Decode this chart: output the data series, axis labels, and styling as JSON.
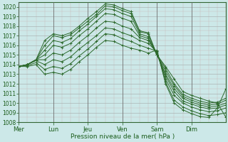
{
  "background_color": "#cce8e8",
  "line_color": "#2d6a2d",
  "xlabel": "Pression niveau de la mer( hPa )",
  "ylim": [
    1008,
    1020.5
  ],
  "yticks": [
    1008,
    1009,
    1010,
    1011,
    1012,
    1013,
    1014,
    1015,
    1016,
    1017,
    1018,
    1019,
    1020
  ],
  "day_labels": [
    "Mer",
    "Lun",
    "Jeu",
    "Ven",
    "Sam",
    "Dim"
  ],
  "day_positions": [
    0,
    24,
    48,
    72,
    96,
    120
  ],
  "total_hours": 144,
  "series": [
    {
      "points": [
        [
          0,
          1013.8
        ],
        [
          6,
          1014.0
        ],
        [
          12,
          1014.5
        ],
        [
          18,
          1016.5
        ],
        [
          24,
          1017.2
        ],
        [
          30,
          1017.0
        ],
        [
          36,
          1017.3
        ],
        [
          42,
          1018.0
        ],
        [
          48,
          1018.8
        ],
        [
          54,
          1019.5
        ],
        [
          60,
          1020.3
        ],
        [
          66,
          1020.2
        ],
        [
          72,
          1019.8
        ],
        [
          78,
          1019.5
        ],
        [
          84,
          1017.5
        ],
        [
          90,
          1017.3
        ],
        [
          96,
          1015.0
        ],
        [
          102,
          1013.8
        ],
        [
          108,
          1012.5
        ],
        [
          114,
          1011.2
        ],
        [
          120,
          1010.8
        ],
        [
          126,
          1010.5
        ],
        [
          132,
          1010.2
        ],
        [
          138,
          1010.0
        ],
        [
          144,
          1008.5
        ]
      ]
    },
    {
      "points": [
        [
          0,
          1013.8
        ],
        [
          6,
          1014.0
        ],
        [
          12,
          1014.5
        ],
        [
          18,
          1016.0
        ],
        [
          24,
          1017.0
        ],
        [
          30,
          1016.8
        ],
        [
          36,
          1017.1
        ],
        [
          42,
          1017.8
        ],
        [
          48,
          1018.5
        ],
        [
          54,
          1019.2
        ],
        [
          60,
          1020.1
        ],
        [
          66,
          1020.0
        ],
        [
          72,
          1019.6
        ],
        [
          78,
          1019.3
        ],
        [
          84,
          1017.4
        ],
        [
          90,
          1017.2
        ],
        [
          96,
          1015.0
        ],
        [
          102,
          1013.6
        ],
        [
          108,
          1012.0
        ],
        [
          114,
          1010.9
        ],
        [
          120,
          1010.5
        ],
        [
          126,
          1010.2
        ],
        [
          132,
          1010.0
        ],
        [
          138,
          1010.1
        ],
        [
          144,
          1010.5
        ]
      ]
    },
    {
      "points": [
        [
          0,
          1013.8
        ],
        [
          6,
          1014.0
        ],
        [
          12,
          1014.5
        ],
        [
          18,
          1015.5
        ],
        [
          24,
          1016.5
        ],
        [
          30,
          1016.3
        ],
        [
          36,
          1016.7
        ],
        [
          42,
          1017.5
        ],
        [
          48,
          1018.2
        ],
        [
          54,
          1019.0
        ],
        [
          60,
          1019.8
        ],
        [
          66,
          1019.7
        ],
        [
          72,
          1019.3
        ],
        [
          78,
          1019.0
        ],
        [
          84,
          1017.2
        ],
        [
          90,
          1016.9
        ],
        [
          96,
          1015.0
        ],
        [
          102,
          1013.3
        ],
        [
          108,
          1011.8
        ],
        [
          114,
          1010.7
        ],
        [
          120,
          1010.3
        ],
        [
          126,
          1010.0
        ],
        [
          132,
          1009.8
        ],
        [
          138,
          1009.9
        ],
        [
          144,
          1010.3
        ]
      ]
    },
    {
      "points": [
        [
          0,
          1013.8
        ],
        [
          6,
          1014.0
        ],
        [
          12,
          1014.5
        ],
        [
          18,
          1015.0
        ],
        [
          24,
          1016.0
        ],
        [
          30,
          1015.8
        ],
        [
          36,
          1016.2
        ],
        [
          42,
          1017.0
        ],
        [
          48,
          1017.7
        ],
        [
          54,
          1018.5
        ],
        [
          60,
          1019.3
        ],
        [
          66,
          1019.2
        ],
        [
          72,
          1018.8
        ],
        [
          78,
          1018.5
        ],
        [
          84,
          1017.0
        ],
        [
          90,
          1016.7
        ],
        [
          96,
          1015.0
        ],
        [
          102,
          1013.0
        ],
        [
          108,
          1011.5
        ],
        [
          114,
          1010.5
        ],
        [
          120,
          1010.1
        ],
        [
          126,
          1009.8
        ],
        [
          132,
          1009.6
        ],
        [
          138,
          1009.7
        ],
        [
          144,
          1010.0
        ]
      ]
    },
    {
      "points": [
        [
          0,
          1013.8
        ],
        [
          6,
          1014.0
        ],
        [
          12,
          1014.5
        ],
        [
          18,
          1014.5
        ],
        [
          24,
          1015.2
        ],
        [
          30,
          1015.0
        ],
        [
          36,
          1015.5
        ],
        [
          42,
          1016.3
        ],
        [
          48,
          1017.0
        ],
        [
          54,
          1017.8
        ],
        [
          60,
          1018.5
        ],
        [
          66,
          1018.4
        ],
        [
          72,
          1018.0
        ],
        [
          78,
          1017.7
        ],
        [
          84,
          1016.8
        ],
        [
          90,
          1016.5
        ],
        [
          96,
          1015.2
        ],
        [
          102,
          1012.8
        ],
        [
          108,
          1011.2
        ],
        [
          114,
          1010.2
        ],
        [
          120,
          1009.9
        ],
        [
          126,
          1009.6
        ],
        [
          132,
          1009.4
        ],
        [
          138,
          1009.5
        ],
        [
          144,
          1009.8
        ]
      ]
    },
    {
      "points": [
        [
          0,
          1013.8
        ],
        [
          6,
          1014.0
        ],
        [
          12,
          1014.4
        ],
        [
          18,
          1014.0
        ],
        [
          24,
          1014.5
        ],
        [
          30,
          1014.3
        ],
        [
          36,
          1014.8
        ],
        [
          42,
          1015.6
        ],
        [
          48,
          1016.3
        ],
        [
          54,
          1017.0
        ],
        [
          60,
          1017.8
        ],
        [
          66,
          1017.7
        ],
        [
          72,
          1017.3
        ],
        [
          78,
          1017.0
        ],
        [
          84,
          1016.5
        ],
        [
          90,
          1016.2
        ],
        [
          96,
          1015.3
        ],
        [
          102,
          1012.5
        ],
        [
          108,
          1010.8
        ],
        [
          114,
          1010.0
        ],
        [
          120,
          1009.6
        ],
        [
          126,
          1009.3
        ],
        [
          132,
          1009.1
        ],
        [
          138,
          1009.2
        ],
        [
          144,
          1009.5
        ]
      ]
    },
    {
      "points": [
        [
          0,
          1013.8
        ],
        [
          6,
          1013.9
        ],
        [
          12,
          1014.2
        ],
        [
          18,
          1013.5
        ],
        [
          24,
          1013.8
        ],
        [
          30,
          1013.6
        ],
        [
          36,
          1014.1
        ],
        [
          42,
          1014.9
        ],
        [
          48,
          1015.6
        ],
        [
          54,
          1016.4
        ],
        [
          60,
          1017.2
        ],
        [
          66,
          1017.1
        ],
        [
          72,
          1016.7
        ],
        [
          78,
          1016.4
        ],
        [
          84,
          1016.0
        ],
        [
          90,
          1015.7
        ],
        [
          96,
          1015.4
        ],
        [
          102,
          1012.2
        ],
        [
          108,
          1010.3
        ],
        [
          114,
          1009.6
        ],
        [
          120,
          1009.2
        ],
        [
          126,
          1008.9
        ],
        [
          132,
          1008.7
        ],
        [
          138,
          1008.8
        ],
        [
          144,
          1009.0
        ]
      ]
    },
    {
      "points": [
        [
          0,
          1013.8
        ],
        [
          6,
          1013.8
        ],
        [
          12,
          1014.0
        ],
        [
          18,
          1013.0
        ],
        [
          24,
          1013.2
        ],
        [
          30,
          1013.0
        ],
        [
          36,
          1013.5
        ],
        [
          42,
          1014.3
        ],
        [
          48,
          1015.0
        ],
        [
          54,
          1015.8
        ],
        [
          60,
          1016.5
        ],
        [
          66,
          1016.4
        ],
        [
          72,
          1016.0
        ],
        [
          78,
          1015.7
        ],
        [
          84,
          1015.5
        ],
        [
          90,
          1015.2
        ],
        [
          96,
          1015.5
        ],
        [
          102,
          1012.0
        ],
        [
          108,
          1010.0
        ],
        [
          114,
          1009.3
        ],
        [
          120,
          1008.9
        ],
        [
          126,
          1008.6
        ],
        [
          132,
          1008.5
        ],
        [
          138,
          1009.5
        ],
        [
          144,
          1011.5
        ]
      ]
    }
  ]
}
